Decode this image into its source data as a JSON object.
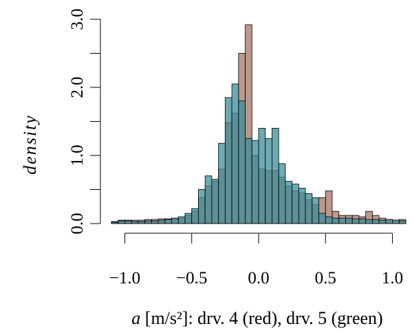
{
  "chart_data": {
    "type": "bar",
    "xlabel_var": "a",
    "xlabel_rest": " [m/s²]: drv. 4 (red), drv. 5 (green)",
    "ylabel": "density",
    "xlim": [
      -1.1,
      1.1
    ],
    "ylim": [
      0,
      3.0
    ],
    "x_ticks": [
      {
        "value": -1.0,
        "label": "−1.0"
      },
      {
        "value": -0.5,
        "label": "−0.5"
      },
      {
        "value": 0.0,
        "label": "0.0"
      },
      {
        "value": 0.5,
        "label": "0.5"
      },
      {
        "value": 1.0,
        "label": "1.0"
      }
    ],
    "y_ticks": [
      {
        "value": 0.0,
        "label": "0.0"
      },
      {
        "value": 1.0,
        "label": "1.0"
      },
      {
        "value": 2.0,
        "label": "2.0"
      },
      {
        "value": 3.0,
        "label": "3.0"
      }
    ],
    "bin_start": -1.1,
    "bin_width": 0.05,
    "series": [
      {
        "color": "#a87464",
        "opacity": 0.75,
        "values": [
          0.03,
          0.05,
          0.05,
          0.05,
          0.05,
          0.06,
          0.06,
          0.07,
          0.07,
          0.07,
          0.08,
          0.12,
          0.18,
          0.38,
          0.55,
          0.62,
          0.8,
          1.48,
          1.62,
          2.5,
          2.92,
          1.0,
          0.8,
          0.78,
          0.78,
          0.68,
          0.55,
          0.48,
          0.45,
          0.35,
          0.28,
          0.38,
          0.48,
          0.18,
          0.12,
          0.12,
          0.12,
          0.1,
          0.18,
          0.12,
          0.08,
          0.06,
          0.05,
          0.06
        ]
      },
      {
        "color": "#3a8e9a",
        "opacity": 0.75,
        "values": [
          0.02,
          0.04,
          0.04,
          0.03,
          0.03,
          0.04,
          0.04,
          0.05,
          0.06,
          0.08,
          0.1,
          0.15,
          0.22,
          0.5,
          0.7,
          0.65,
          1.18,
          1.85,
          2.05,
          1.8,
          1.25,
          1.22,
          1.4,
          1.25,
          1.4,
          0.88,
          0.62,
          0.58,
          0.52,
          0.44,
          0.38,
          0.15,
          0.1,
          0.08,
          0.08,
          0.08,
          0.07,
          0.07,
          0.06,
          0.06,
          0.05,
          0.06,
          0.05,
          0.04
        ]
      }
    ]
  }
}
